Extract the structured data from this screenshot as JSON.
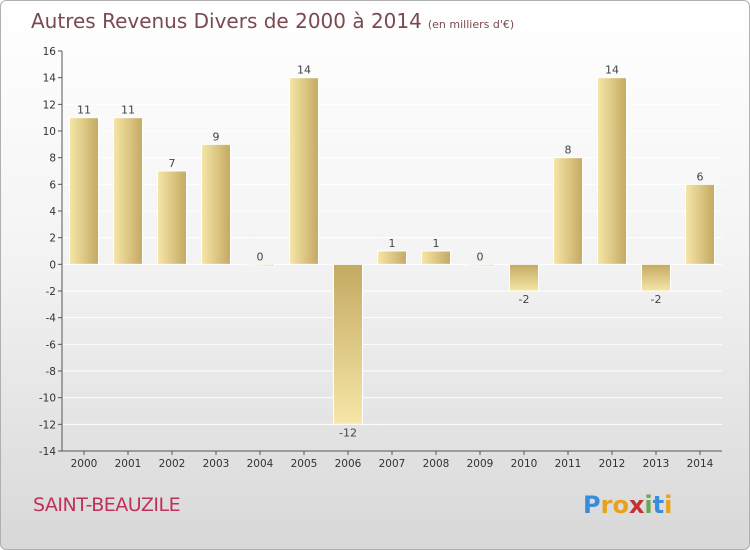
{
  "title": "Autres Revenus Divers de 2000 à 2014",
  "unit": "(en milliers d'€)",
  "commune": "SAINT-BEAUZILE",
  "logo": {
    "letters": [
      "P",
      "r",
      "o",
      "x",
      "i",
      "t",
      "i"
    ],
    "colors": [
      "#3a8dd8",
      "#e8a21a",
      "#e8a21a",
      "#c83030",
      "#6aa84f",
      "#3a8dd8",
      "#e8a21a"
    ]
  },
  "colors": {
    "bar_light": "#f6e6a8",
    "bar_dark": "#c4aa62",
    "axis": "#555555",
    "grid": "#ffffff"
  },
  "chart_data": {
    "type": "bar",
    "categories": [
      "2000",
      "2001",
      "2002",
      "2003",
      "2004",
      "2005",
      "2006",
      "2007",
      "2008",
      "2009",
      "2010",
      "2011",
      "2012",
      "2013",
      "2014"
    ],
    "values": [
      11,
      11,
      7,
      9,
      0,
      14,
      -12,
      1,
      1,
      0,
      -2,
      8,
      14,
      -2,
      6
    ],
    "labels": [
      "11",
      "11",
      "7",
      "9",
      "0",
      "14",
      "-12",
      "1",
      "1",
      "0",
      "-2",
      "8",
      "14",
      "-2",
      "6"
    ],
    "ylim": [
      -14,
      16
    ],
    "yticks": [
      -14,
      -12,
      -10,
      -8,
      -6,
      -4,
      -2,
      0,
      2,
      4,
      6,
      8,
      10,
      12,
      14,
      16
    ],
    "grid": true,
    "xlabel": "",
    "ylabel": ""
  }
}
